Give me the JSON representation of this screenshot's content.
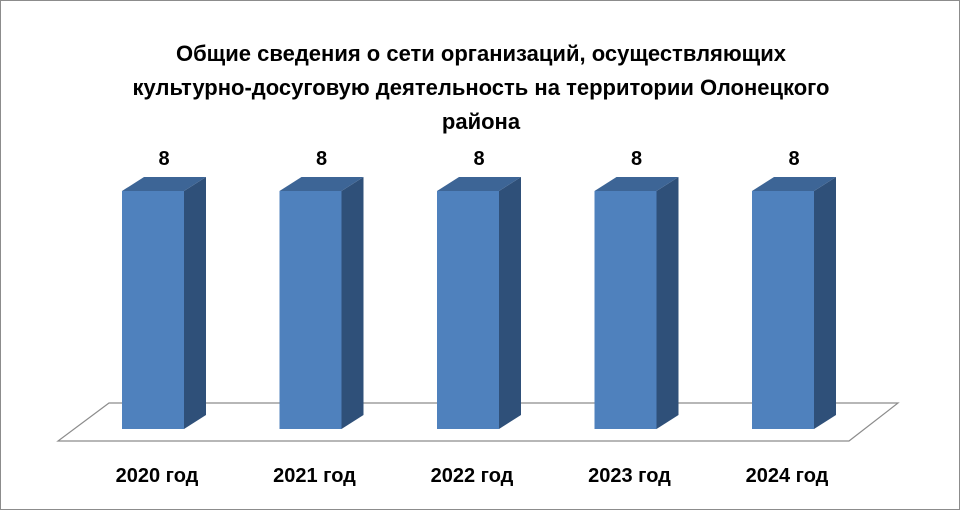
{
  "chart_data": {
    "type": "bar3d",
    "title": "Общие сведения о сети организаций, осуществляющих культурно-досуговую деятельность на территории Олонецкого района",
    "categories": [
      "2020 год",
      "2021 год",
      "2022 год",
      "2023 год",
      "2024 год"
    ],
    "values": [
      8,
      8,
      8,
      8,
      8
    ],
    "color": "#4f81bd"
  }
}
